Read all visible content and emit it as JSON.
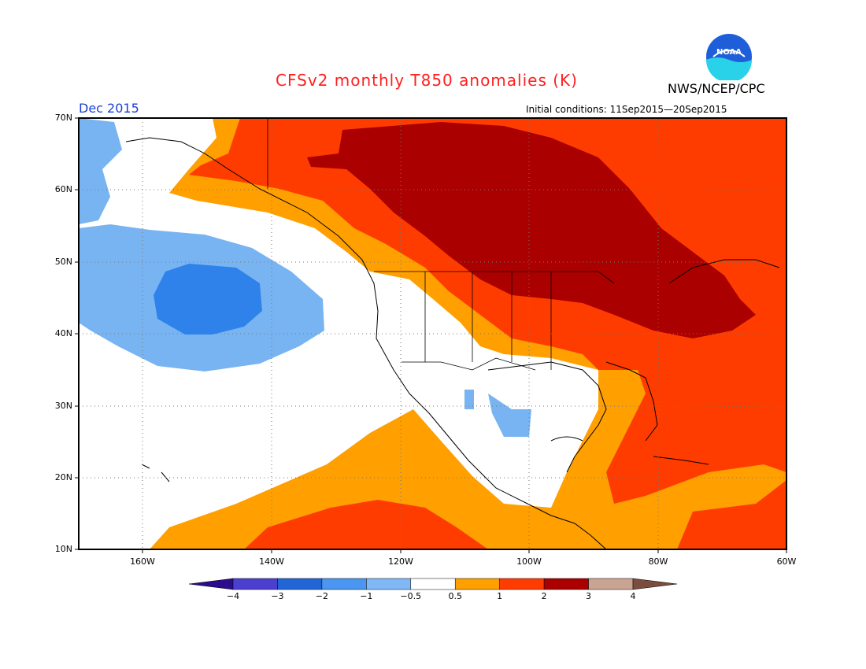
{
  "title": "CFSv2 monthly T850 anomalies (K)",
  "agency": "NWS/NCEP/CPC",
  "logo_text": "NOAA",
  "valid_period": "Dec 2015",
  "initial_conditions": "Initial conditions: 11Sep2015—20Sep2015",
  "lat_labels": [
    "70N",
    "60N",
    "50N",
    "40N",
    "30N",
    "20N",
    "10N"
  ],
  "lon_labels": [
    "160W",
    "140W",
    "120W",
    "100W",
    "80W",
    "60W"
  ],
  "colorbar": {
    "tick_labels": [
      "−4",
      "−3",
      "−2",
      "−1",
      "−0.5",
      "0.5",
      "1",
      "2",
      "3",
      "4"
    ],
    "colors": [
      "#2a0c8c",
      "#4b3fd0",
      "#2266d6",
      "#4a96f0",
      "#7fb8f5",
      "#ffffff",
      "#ff9f00",
      "#ff3c00",
      "#aa0000",
      "#c9a493",
      "#7a4d3e"
    ]
  },
  "colors": {
    "title": "#ff2020",
    "period": "#1a3fd9",
    "neg2": "#2e82ea",
    "neg1": "#78b4f2",
    "neutral": "#ffffff",
    "pos05": "#ff9f00",
    "pos1": "#ff3c00",
    "pos2": "#aa0000"
  }
}
